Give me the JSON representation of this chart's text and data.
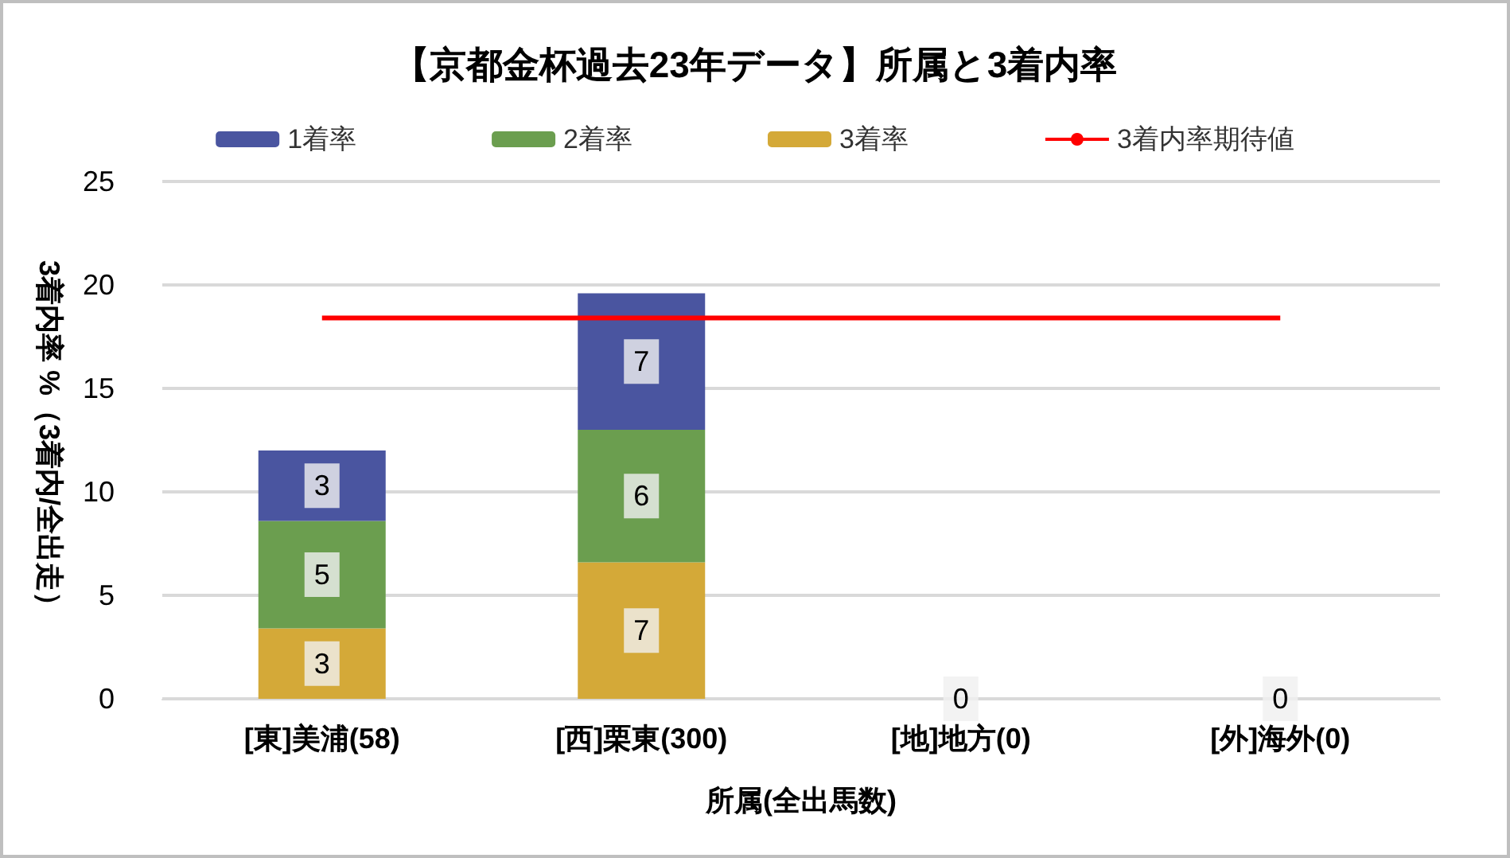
{
  "chart_data": {
    "type": "bar",
    "title": "【京都金杯過去23年データ】所属と3着内率",
    "xlabel": "所属(全出馬数)",
    "ylabel": "3着内率 %（3着内/全出走）",
    "categories": [
      "[東]美浦(58)",
      "[西]栗東(300)",
      "[地]地方(0)",
      "[外]海外(0)"
    ],
    "stacked": true,
    "ylim": [
      0,
      25
    ],
    "yticks": [
      0,
      5,
      10,
      15,
      20,
      25
    ],
    "grid": "y",
    "legend": "top",
    "series": [
      {
        "name": "3着率",
        "color": "#d4a938",
        "values": [
          3.4,
          6.6,
          0,
          0
        ],
        "value_labels": [
          "3",
          "7",
          "0",
          "0"
        ]
      },
      {
        "name": "2着率",
        "color": "#6b9e4f",
        "values": [
          5.2,
          6.4,
          0,
          0
        ],
        "value_labels": [
          "5",
          "6",
          null,
          null
        ]
      },
      {
        "name": "1着率",
        "color": "#4a55a0",
        "values": [
          3.4,
          6.6,
          0,
          0
        ],
        "value_labels": [
          "3",
          "7",
          null,
          null
        ]
      },
      {
        "name": "3着内率期待値",
        "type": "line",
        "color": "#ff0000",
        "marker": "none",
        "values": [
          18.4,
          18.4,
          18.4,
          18.4
        ]
      }
    ]
  }
}
